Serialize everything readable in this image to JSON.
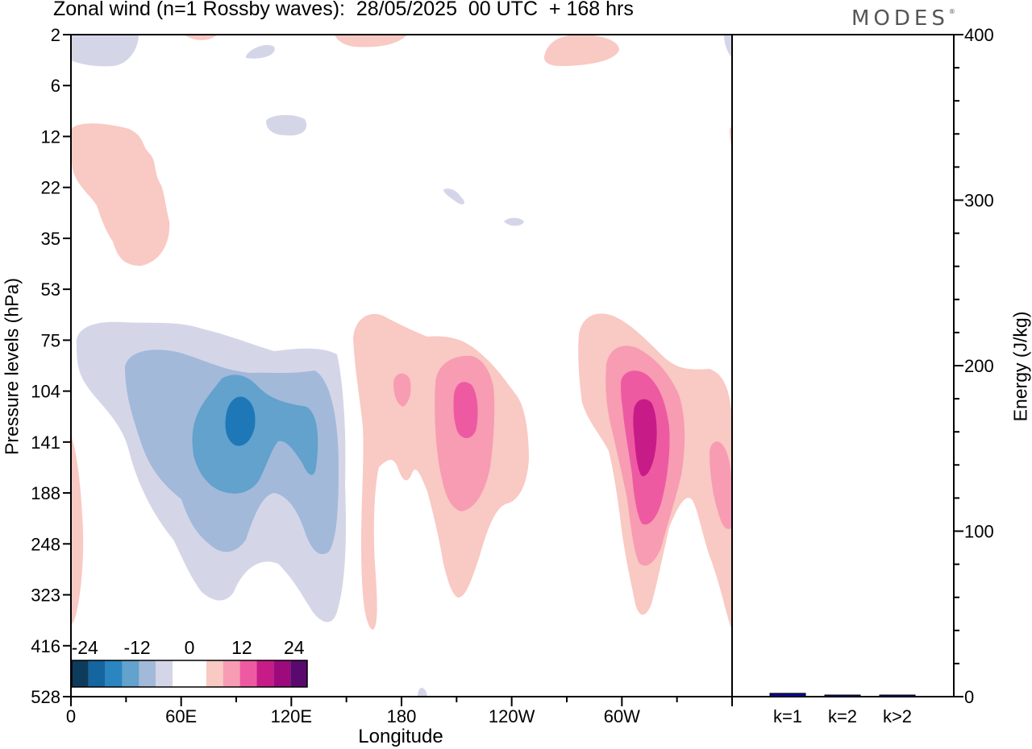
{
  "header": {
    "title": "Zonal wind (n=1 Rossby waves):  28/05/2025  00 UTC  + 168 hrs",
    "logo": "MODES",
    "logo_mark": "®"
  },
  "chart_data": [
    {
      "type": "heatmap",
      "title": "Zonal wind (n=1 Rossby waves):  28/05/2025  00 UTC  + 168 hrs",
      "xlabel": "Longitude",
      "ylabel": "Pressure levels (hPa)",
      "x_ticks": [
        "0",
        "60E",
        "120E",
        "180",
        "120W",
        "60W"
      ],
      "x_tick_values": [
        0,
        60,
        120,
        180,
        240,
        300
      ],
      "xlim": [
        0,
        360
      ],
      "y_ticks": [
        "2",
        "6",
        "12",
        "22",
        "35",
        "53",
        "75",
        "104",
        "141",
        "188",
        "248",
        "323",
        "416",
        "528"
      ],
      "y_scale": "log",
      "y_inverted": true,
      "colorbar": {
        "tick_labels": [
          "-24",
          "-12",
          "0",
          "12",
          "24"
        ],
        "levels": [
          -27,
          -24,
          -21,
          -18,
          -15,
          -12,
          -9,
          -6,
          -3,
          3,
          6,
          9,
          12,
          15,
          18,
          21,
          24
        ],
        "colors": [
          "#0d3b5c",
          "#1565a0",
          "#2a85c0",
          "#62a2cc",
          "#a2b9da",
          "#d4d6e8",
          "#ffffff",
          "#ffffff",
          "#f9c9c3",
          "#f79cb3",
          "#ee5aa2",
          "#c71c88",
          "#9c0a7c",
          "#5a0a6e"
        ],
        "placement": "lower-left"
      },
      "features": [
        {
          "sign": "negative",
          "min_value": -21,
          "center_lon": 92,
          "center_hPa": 120
        },
        {
          "sign": "positive",
          "max_value": 12,
          "center_lon": 208,
          "center_hPa": 115
        },
        {
          "sign": "positive",
          "max_value": 15,
          "center_lon": 312,
          "center_hPa": 140
        },
        {
          "sign": "positive",
          "max_value": 9,
          "center_lon": 354,
          "center_hPa": 190
        },
        {
          "sign": "positive",
          "max_value": 3,
          "center_lon": 30,
          "center_hPa": 20
        },
        {
          "sign": "negative",
          "min_value": -3,
          "center_lon": 30,
          "center_hPa": 3
        }
      ]
    },
    {
      "type": "bar",
      "categories": [
        "k=1",
        "k=2",
        "k>2"
      ],
      "values": [
        2,
        0.5,
        0.5
      ],
      "ylabel": "Energy (J/kg)",
      "y_ticks": [
        "0",
        "100",
        "200",
        "300",
        "400"
      ],
      "ylim": [
        0,
        400
      ],
      "bar_colors": [
        "#0a0a8c",
        "#0a0a8c",
        "#0a0a8c"
      ]
    }
  ]
}
